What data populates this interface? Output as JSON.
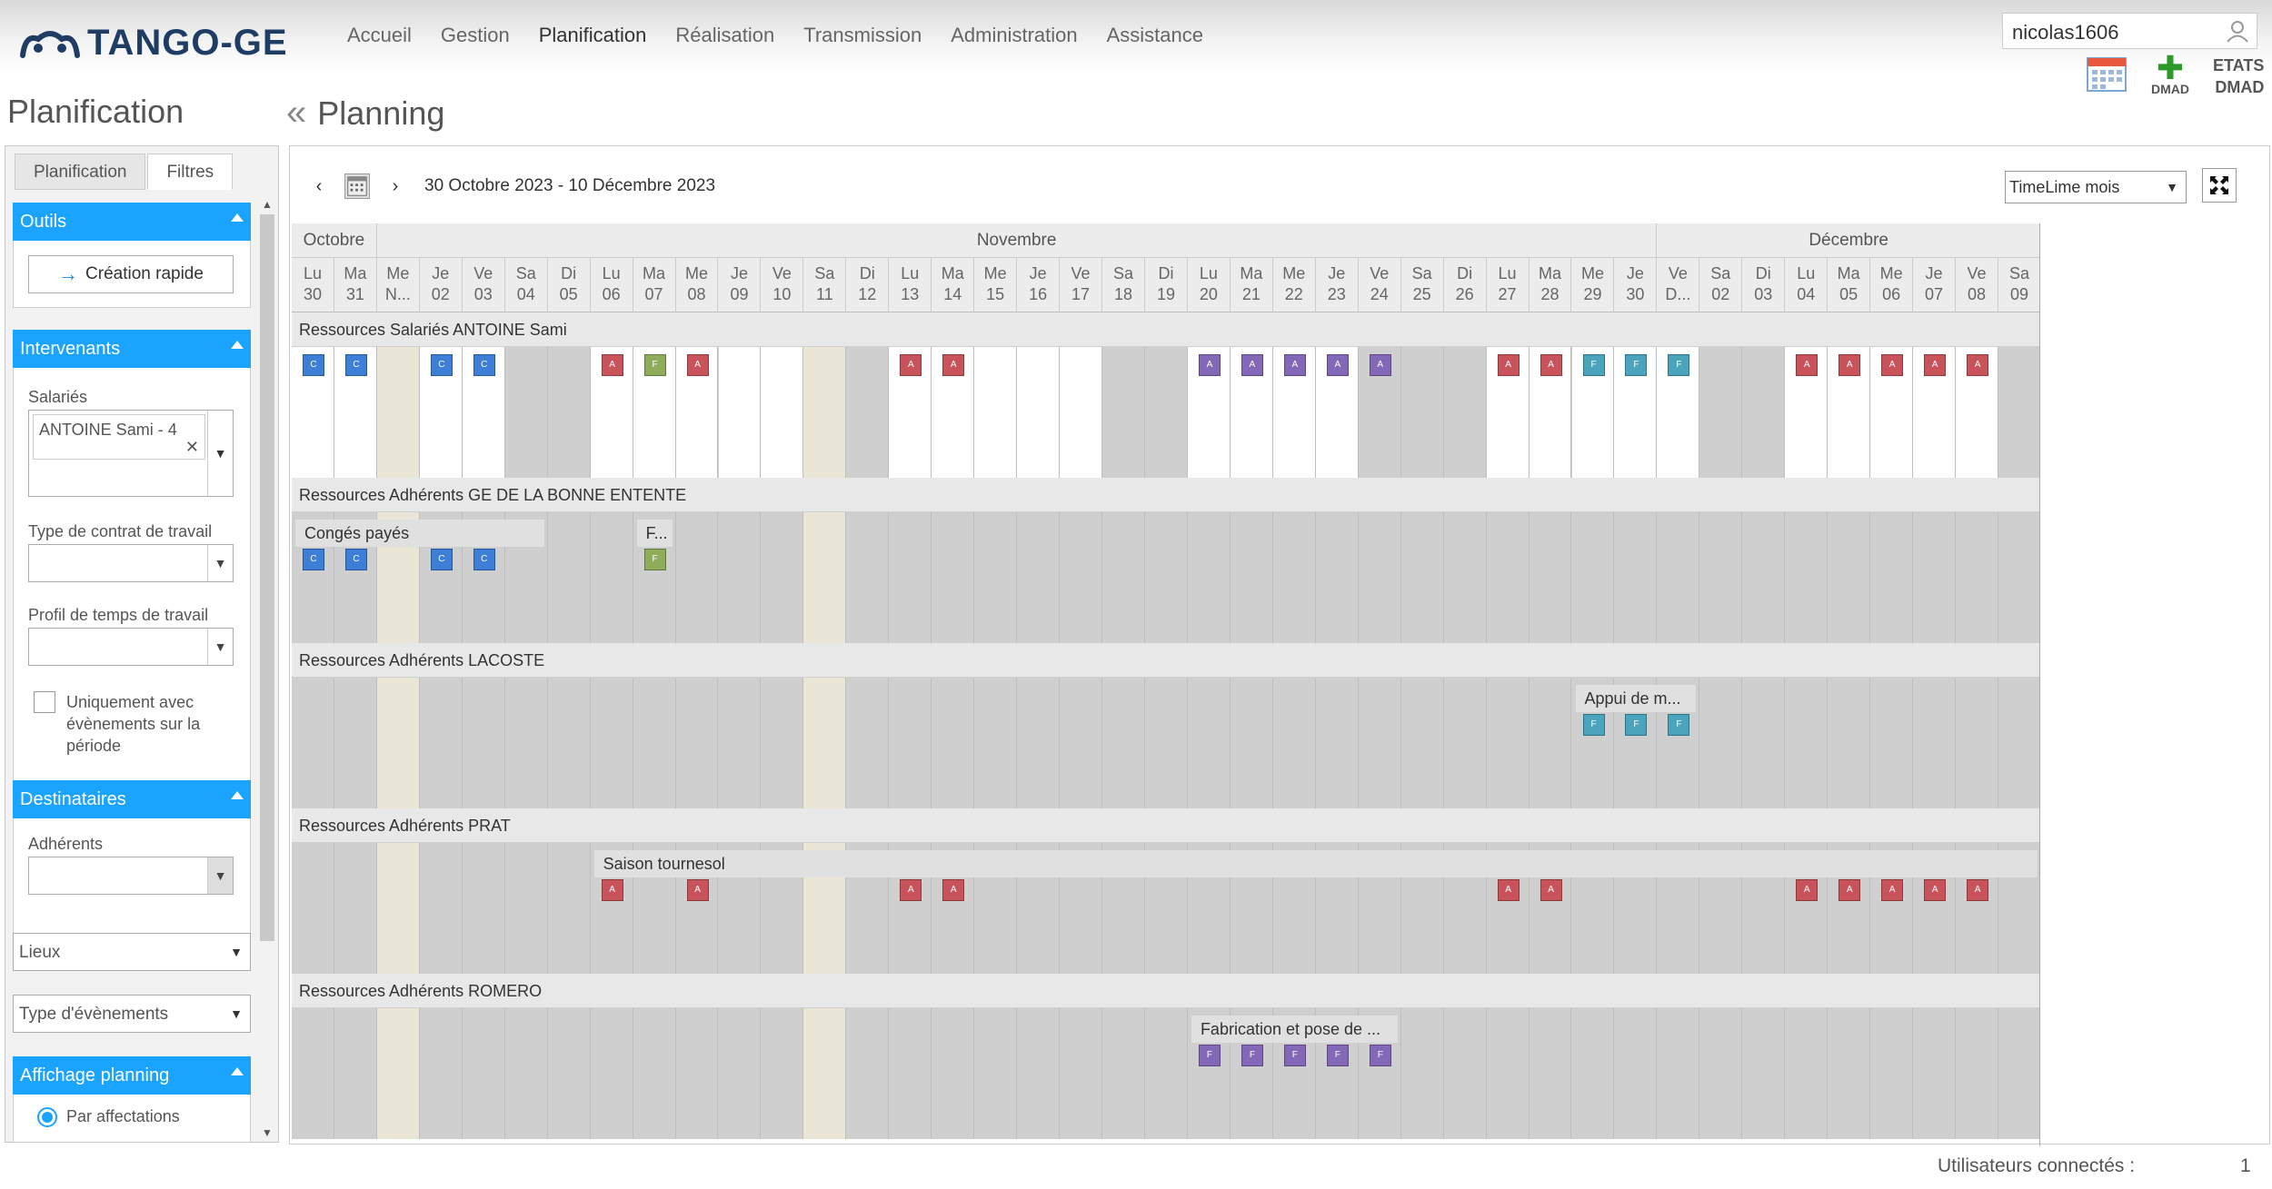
{
  "header": {
    "logo_text": "TANGO-GE",
    "nav": [
      "Accueil",
      "Gestion",
      "Planification",
      "Réalisation",
      "Transmission",
      "Administration",
      "Assistance"
    ],
    "active_nav": "Planification",
    "user": "nicolas1606",
    "dmad_label": "DMAD",
    "etats_label": "ETATS",
    "etats_dmad_label": "DMAD"
  },
  "page_title": "Planification",
  "planning_title": "Planning",
  "sidebar": {
    "tabs": [
      "Planification",
      "Filtres"
    ],
    "outils": {
      "title": "Outils",
      "button": "Création rapide"
    },
    "intervenants": {
      "title": "Intervenants",
      "salaries_label": "Salariés",
      "salarie_tag": "ANTOINE Sami - 4",
      "contrat_label": "Type de contrat de travail",
      "profil_label": "Profil de temps de travail",
      "checkbox_label": "Uniquement avec évènements sur la période"
    },
    "destinataires": {
      "title": "Destinataires",
      "adherents_label": "Adhérents"
    },
    "lieux": "Lieux",
    "type_evenements": "Type d'évènements",
    "affichage": {
      "title": "Affichage planning",
      "radio1": "Par affectations"
    }
  },
  "toolbar": {
    "range": "30 Octobre 2023 - 10 Décembre 2023",
    "view": "TimeLime mois"
  },
  "months": [
    {
      "label": "Octobre",
      "span": 2
    },
    {
      "label": "Novembre",
      "span": 30
    },
    {
      "label": "Décembre",
      "span": 9
    }
  ],
  "days": [
    {
      "d": "Lu",
      "n": "30"
    },
    {
      "d": "Ma",
      "n": "31"
    },
    {
      "d": "Me",
      "n": "N..."
    },
    {
      "d": "Je",
      "n": "02"
    },
    {
      "d": "Ve",
      "n": "03"
    },
    {
      "d": "Sa",
      "n": "04"
    },
    {
      "d": "Di",
      "n": "05"
    },
    {
      "d": "Lu",
      "n": "06"
    },
    {
      "d": "Ma",
      "n": "07"
    },
    {
      "d": "Me",
      "n": "08"
    },
    {
      "d": "Je",
      "n": "09"
    },
    {
      "d": "Ve",
      "n": "10"
    },
    {
      "d": "Sa",
      "n": "11"
    },
    {
      "d": "Di",
      "n": "12"
    },
    {
      "d": "Lu",
      "n": "13"
    },
    {
      "d": "Ma",
      "n": "14"
    },
    {
      "d": "Me",
      "n": "15"
    },
    {
      "d": "Je",
      "n": "16"
    },
    {
      "d": "Ve",
      "n": "17"
    },
    {
      "d": "Sa",
      "n": "18"
    },
    {
      "d": "Di",
      "n": "19"
    },
    {
      "d": "Lu",
      "n": "20"
    },
    {
      "d": "Ma",
      "n": "21"
    },
    {
      "d": "Me",
      "n": "22"
    },
    {
      "d": "Je",
      "n": "23"
    },
    {
      "d": "Ve",
      "n": "24"
    },
    {
      "d": "Sa",
      "n": "25"
    },
    {
      "d": "Di",
      "n": "26"
    },
    {
      "d": "Lu",
      "n": "27"
    },
    {
      "d": "Ma",
      "n": "28"
    },
    {
      "d": "Me",
      "n": "29"
    },
    {
      "d": "Je",
      "n": "30"
    },
    {
      "d": "Ve",
      "n": "D..."
    },
    {
      "d": "Sa",
      "n": "02"
    },
    {
      "d": "Di",
      "n": "03"
    },
    {
      "d": "Lu",
      "n": "04"
    },
    {
      "d": "Ma",
      "n": "05"
    },
    {
      "d": "Me",
      "n": "06"
    },
    {
      "d": "Je",
      "n": "07"
    },
    {
      "d": "Ve",
      "n": "08"
    },
    {
      "d": "Sa",
      "n": "09"
    }
  ],
  "lanes": [
    {
      "title": "Ressources Salariés ANTOINE Sami",
      "white_cols": [
        0,
        1,
        3,
        4,
        7,
        8,
        9,
        10,
        11,
        14,
        15,
        16,
        17,
        18,
        21,
        22,
        23,
        24,
        28,
        29,
        30,
        31,
        32,
        35,
        36,
        37,
        38,
        39
      ],
      "bars": [],
      "events": [
        {
          "col": 0,
          "t": "C",
          "l": "C"
        },
        {
          "col": 1,
          "t": "C",
          "l": "C"
        },
        {
          "col": 3,
          "t": "C",
          "l": "C"
        },
        {
          "col": 4,
          "t": "C",
          "l": "C"
        },
        {
          "col": 7,
          "t": "A",
          "l": "A"
        },
        {
          "col": 8,
          "t": "F",
          "l": "F"
        },
        {
          "col": 9,
          "t": "A",
          "l": "A"
        },
        {
          "col": 14,
          "t": "A",
          "l": "A"
        },
        {
          "col": 15,
          "t": "A",
          "l": "A"
        },
        {
          "col": 21,
          "t": "P",
          "l": "A"
        },
        {
          "col": 22,
          "t": "P",
          "l": "A"
        },
        {
          "col": 23,
          "t": "P",
          "l": "A"
        },
        {
          "col": 24,
          "t": "P",
          "l": "A"
        },
        {
          "col": 25,
          "t": "P",
          "l": "A"
        },
        {
          "col": 28,
          "t": "A",
          "l": "A"
        },
        {
          "col": 29,
          "t": "A",
          "l": "A"
        },
        {
          "col": 30,
          "t": "T",
          "l": "F"
        },
        {
          "col": 31,
          "t": "T",
          "l": "F"
        },
        {
          "col": 32,
          "t": "T",
          "l": "F"
        },
        {
          "col": 35,
          "t": "A",
          "l": "A"
        },
        {
          "col": 36,
          "t": "A",
          "l": "A"
        },
        {
          "col": 37,
          "t": "A",
          "l": "A"
        },
        {
          "col": 38,
          "t": "A",
          "l": "A"
        },
        {
          "col": 39,
          "t": "A",
          "l": "A"
        }
      ]
    },
    {
      "title": "Ressources Adhérents GE DE LA BONNE ENTENTE",
      "white_cols": [],
      "bars": [
        {
          "start": 0,
          "span": 6,
          "label": "Congés payés"
        },
        {
          "start": 8,
          "span": 1,
          "label": "F..."
        }
      ],
      "events": [
        {
          "col": 0,
          "t": "C",
          "l": "C"
        },
        {
          "col": 1,
          "t": "C",
          "l": "C"
        },
        {
          "col": 3,
          "t": "C",
          "l": "C"
        },
        {
          "col": 4,
          "t": "C",
          "l": "C"
        },
        {
          "col": 8,
          "t": "F",
          "l": "F"
        }
      ]
    },
    {
      "title": "Ressources Adhérents LACOSTE",
      "white_cols": [],
      "bars": [
        {
          "start": 30,
          "span": 3,
          "label": "Appui de m..."
        }
      ],
      "events": [
        {
          "col": 30,
          "t": "T",
          "l": "F"
        },
        {
          "col": 31,
          "t": "T",
          "l": "F"
        },
        {
          "col": 32,
          "t": "T",
          "l": "F"
        }
      ]
    },
    {
      "title": "Ressources Adhérents PRAT",
      "white_cols": [],
      "bars": [
        {
          "start": 7,
          "span": 34,
          "label": "Saison tournesol"
        }
      ],
      "events": [
        {
          "col": 7,
          "t": "A",
          "l": "A"
        },
        {
          "col": 9,
          "t": "A",
          "l": "A"
        },
        {
          "col": 14,
          "t": "A",
          "l": "A"
        },
        {
          "col": 15,
          "t": "A",
          "l": "A"
        },
        {
          "col": 28,
          "t": "A",
          "l": "A"
        },
        {
          "col": 29,
          "t": "A",
          "l": "A"
        },
        {
          "col": 35,
          "t": "A",
          "l": "A"
        },
        {
          "col": 36,
          "t": "A",
          "l": "A"
        },
        {
          "col": 37,
          "t": "A",
          "l": "A"
        },
        {
          "col": 38,
          "t": "A",
          "l": "A"
        },
        {
          "col": 39,
          "t": "A",
          "l": "A"
        }
      ]
    },
    {
      "title": "Ressources Adhérents ROMERO",
      "white_cols": [],
      "bars": [
        {
          "start": 21,
          "span": 5,
          "label": "Fabrication et pose de ..."
        }
      ],
      "events": [
        {
          "col": 21,
          "t": "P",
          "l": "F"
        },
        {
          "col": 22,
          "t": "P",
          "l": "F"
        },
        {
          "col": 23,
          "t": "P",
          "l": "F"
        },
        {
          "col": 24,
          "t": "P",
          "l": "F"
        },
        {
          "col": 25,
          "t": "P",
          "l": "F"
        }
      ]
    }
  ],
  "holiday_cols": [
    2,
    12
  ],
  "footer": {
    "label": "Utilisateurs connectés :",
    "value": "1"
  }
}
